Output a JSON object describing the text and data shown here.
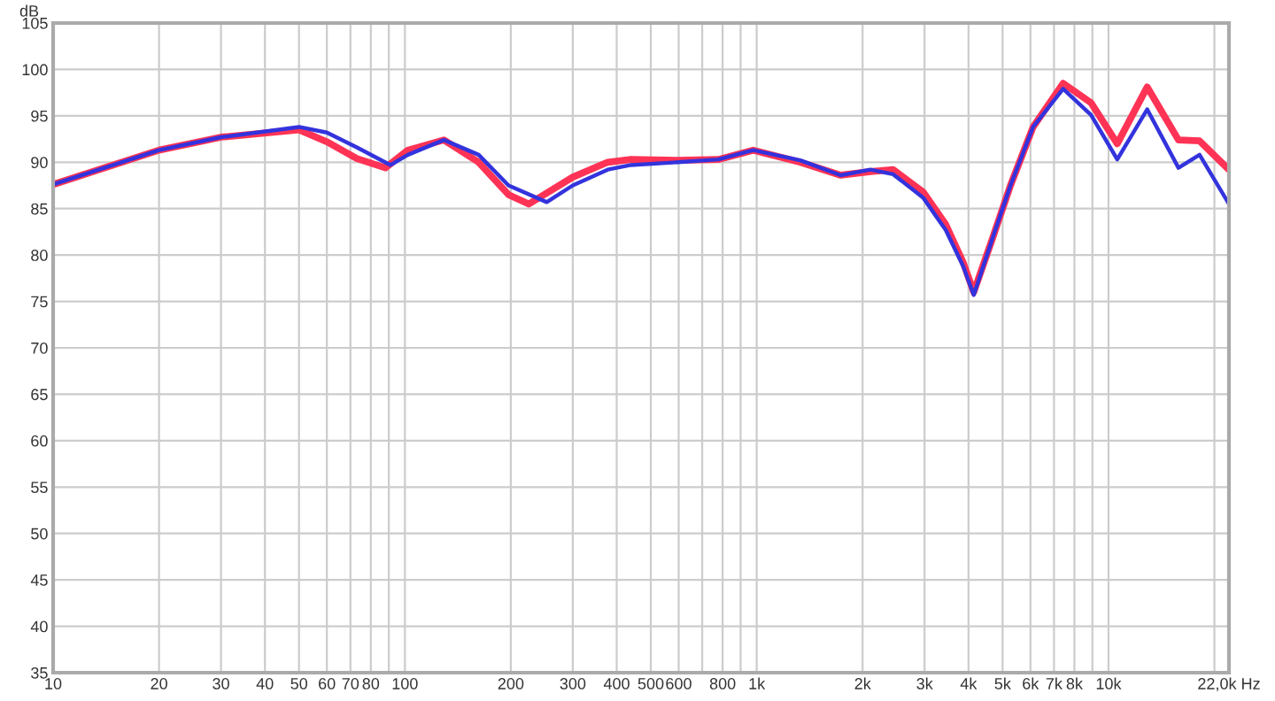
{
  "chart_data": {
    "type": "line",
    "ylabel": "dB",
    "log": "x",
    "grid": true,
    "line_style": "solid",
    "xlim": [
      10,
      22000
    ],
    "ylim": [
      35,
      105
    ],
    "xticks": [
      10,
      20,
      30,
      40,
      50,
      60,
      70,
      80,
      {
        "value": 90,
        "label": null
      },
      100,
      200,
      300,
      400,
      500,
      600,
      {
        "value": 700,
        "label": null
      },
      800,
      {
        "value": 900,
        "label": null
      },
      {
        "value": 1000,
        "label": "1k"
      },
      {
        "value": 2000,
        "label": "2k"
      },
      {
        "value": 3000,
        "label": "3k"
      },
      {
        "value": 4000,
        "label": "4k"
      },
      {
        "value": 5000,
        "label": "5k"
      },
      {
        "value": 6000,
        "label": "6k"
      },
      {
        "value": 7000,
        "label": "7k"
      },
      {
        "value": 8000,
        "label": "8k"
      },
      {
        "value": 9000,
        "label": null
      },
      {
        "value": 10000,
        "label": "10k"
      },
      {
        "value": 20000,
        "label": null
      },
      {
        "value": 22000,
        "label": "22,0k Hz"
      }
    ],
    "yticks": [
      35,
      40,
      45,
      50,
      55,
      60,
      65,
      70,
      75,
      80,
      85,
      90,
      95,
      100,
      105
    ],
    "series": [
      {
        "color": "#ff3355",
        "x": [
          10,
          20,
          30,
          50,
          60,
          73,
          88,
          102,
          129,
          162,
          197,
          225,
          300,
          377,
          439,
          597,
          778,
          977,
          1330,
          1733,
          2105,
          2443,
          2970,
          3445,
          3863,
          4140,
          4700,
          5265,
          6105,
          7430,
          8920,
          10590,
          12880,
          15810,
          18150,
          22000
        ],
        "values": [
          87.6,
          91.3,
          92.7,
          93.5,
          92.2,
          90.4,
          89.4,
          91.3,
          92.4,
          90.0,
          86.5,
          85.5,
          88.4,
          90.0,
          90.3,
          90.2,
          90.3,
          91.3,
          90.0,
          88.6,
          89.0,
          89.2,
          86.8,
          83.3,
          79.2,
          76.0,
          82.0,
          87.5,
          93.8,
          98.5,
          96.4,
          92.0,
          98.1,
          92.4,
          92.3,
          89.2
        ]
      },
      {
        "color": "#3333dd",
        "x": [
          10,
          20,
          30,
          50,
          60,
          73,
          91,
          102,
          129,
          162,
          197,
          253,
          300,
          377,
          439,
          597,
          778,
          977,
          1330,
          1733,
          2105,
          2443,
          2970,
          3445,
          3863,
          4140,
          4700,
          5265,
          6105,
          7430,
          8920,
          10590,
          12880,
          15810,
          18150,
          22000
        ],
        "values": [
          87.6,
          91.3,
          92.7,
          93.8,
          93.2,
          91.6,
          89.7,
          90.8,
          92.4,
          90.8,
          87.5,
          85.7,
          87.5,
          89.2,
          89.7,
          90.0,
          90.3,
          91.3,
          90.2,
          88.6,
          89.2,
          88.7,
          86.2,
          82.7,
          78.8,
          75.7,
          82.0,
          87.5,
          93.8,
          97.9,
          95.1,
          90.3,
          95.7,
          89.4,
          90.8,
          85.5
        ]
      }
    ]
  }
}
